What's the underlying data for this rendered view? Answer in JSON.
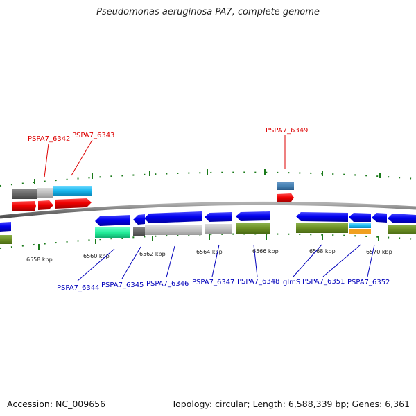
{
  "header": {
    "title": "Pseudomonas aeruginosa PA7, complete genome"
  },
  "footer": {
    "accession": "Accession: NC_009656",
    "summary": "Topology: circular; Length: 6,588,339 bp; Genes: 6,361"
  },
  "colors": {
    "label_forward": "#dd0000",
    "label_reverse": "#0000bb",
    "backbone": "#7a7a7a",
    "tick": "#1a7a1a"
  },
  "ticks": [
    "6558 kbp",
    "6560 kbp",
    "6562 kbp",
    "6564 kbp",
    "6566 kbp",
    "6568 kbp",
    "6570 kbp"
  ],
  "gene_labels_top": [
    "PSPA7_6342",
    "PSPA7_6343",
    "PSPA7_6349"
  ],
  "gene_labels_bottom": [
    "PSPA7_6344",
    "PSPA7_6345",
    "PSPA7_6346",
    "PSPA7_6347",
    "PSPA7_6348",
    "glmS",
    "PSPA7_6351",
    "PSPA7_6352"
  ]
}
